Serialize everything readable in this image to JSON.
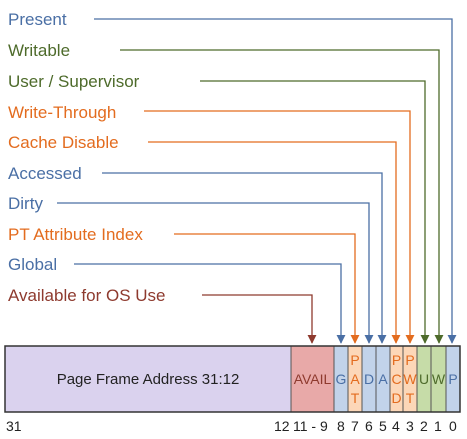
{
  "colors": {
    "blue": "#4A6FA5",
    "green": "#4E6B2B",
    "orange": "#E36C1F",
    "darkred": "#8E3A2E",
    "frame_fill": "#DAD2EE",
    "avail_fill": "#E8A9A8",
    "blue_fill": "#C2D3EA",
    "green_fill": "#C6DCA8",
    "orange_fill": "#FCD7B8"
  },
  "labels": {
    "present": "Present",
    "writable": "Writable",
    "user_supervisor": "User / Supervisor",
    "write_through": "Write-Through",
    "cache_disable": "Cache Disable",
    "accessed": "Accessed",
    "dirty": "Dirty",
    "pat_index": "PT Attribute Index",
    "global": "Global",
    "available": "Available for OS Use"
  },
  "fields": {
    "page_frame": "Page Frame Address 31:12",
    "avail": "AVAIL",
    "g": "G",
    "pat": [
      "P",
      "A",
      "T"
    ],
    "d": "D",
    "a": "A",
    "pcd": [
      "P",
      "C",
      "D"
    ],
    "pwt": [
      "P",
      "W",
      "T"
    ],
    "u": "U",
    "w": "W",
    "p": "P"
  },
  "bits": {
    "b31": "31",
    "b12": "12",
    "b11_9": "11 - 9",
    "b8": "8",
    "b7": "7",
    "b6": "6",
    "b5": "5",
    "b4": "4",
    "b3": "3",
    "b2": "2",
    "b1": "1",
    "b0": "0"
  }
}
